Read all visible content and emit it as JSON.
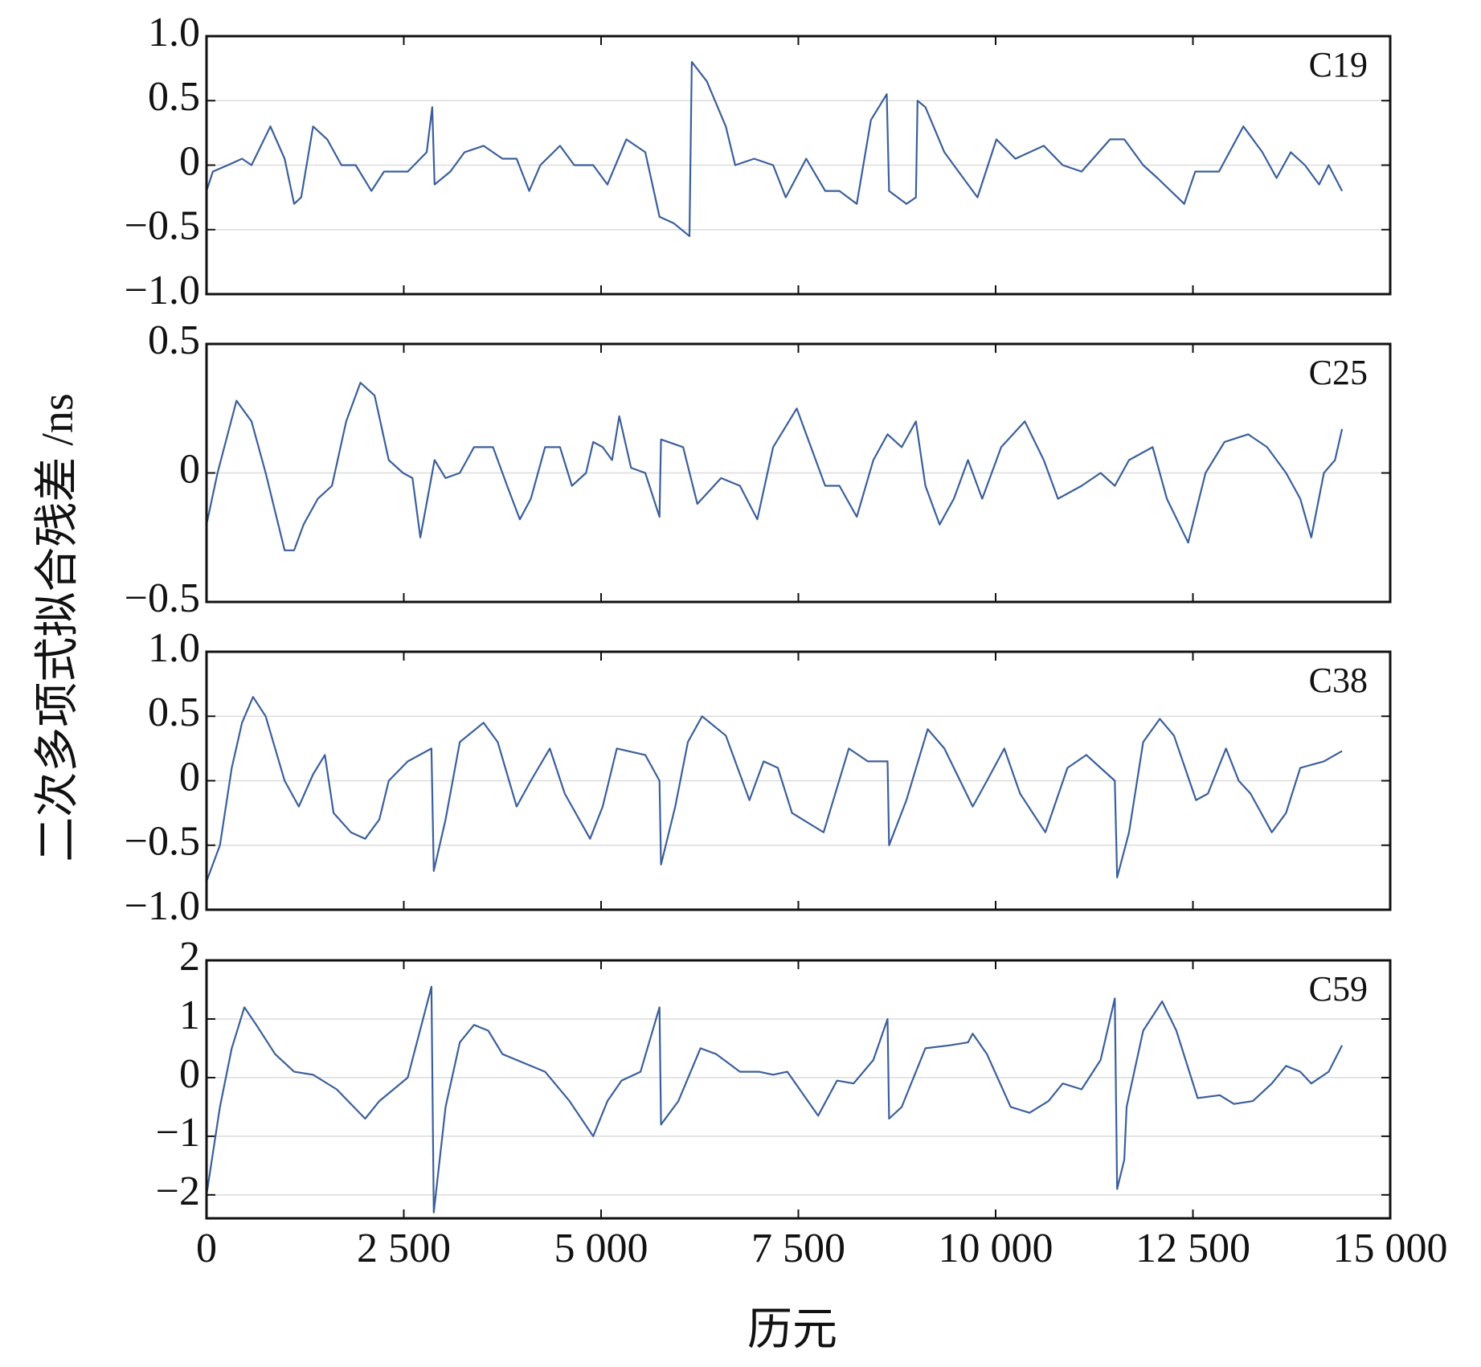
{
  "xlabel": "历元",
  "ylabel": "二次多项式拟合残差 /ns",
  "chart_data": [
    {
      "type": "line",
      "title": "C19",
      "color": "#3b5f9b",
      "grid": true,
      "xlim": [
        0,
        15000
      ],
      "xticks": [
        0,
        {
          "value": 2500,
          "label": "2 500"
        },
        {
          "value": 5000,
          "label": "5 000"
        },
        {
          "value": 7500,
          "label": "7 500"
        },
        {
          "value": 10000,
          "label": "10 000"
        },
        {
          "value": 12500,
          "label": "12 500"
        },
        {
          "value": 15000,
          "label": "15 000"
        }
      ],
      "ylim": [
        -1,
        1
      ],
      "yticks": [
        {
          "value": -1,
          "label": "−1.0"
        },
        {
          "value": -0.5,
          "label": "−0.5"
        },
        0,
        0.5,
        {
          "value": 1,
          "label": "1.0"
        }
      ],
      "x": [
        0,
        80,
        270,
        450,
        570,
        810,
        990,
        1110,
        1200,
        1350,
        1530,
        1710,
        1890,
        2090,
        2250,
        2550,
        2790,
        2860,
        2890,
        3090,
        3270,
        3510,
        3750,
        3930,
        4090,
        4230,
        4480,
        4660,
        4900,
        5080,
        5320,
        5560,
        5740,
        5920,
        6120,
        6150,
        6340,
        6580,
        6700,
        6940,
        7180,
        7340,
        7600,
        7840,
        8020,
        8240,
        8420,
        8620,
        8650,
        8870,
        8990,
        9010,
        9110,
        9350,
        9530,
        9770,
        10010,
        10250,
        10610,
        10850,
        11090,
        11450,
        11630,
        11870,
        12050,
        12390,
        12530,
        12830,
        13140,
        13380,
        13560,
        13740,
        13920,
        14100,
        14220,
        14390
      ],
      "values": [
        -0.2,
        -0.05,
        0,
        0.05,
        0,
        0.3,
        0.05,
        -0.3,
        -0.25,
        0.3,
        0.2,
        0,
        0,
        -0.2,
        -0.05,
        -0.05,
        0.1,
        0.45,
        -0.15,
        -0.05,
        0.1,
        0.15,
        0.05,
        0.05,
        -0.2,
        0,
        0.15,
        0,
        0,
        -0.15,
        0.2,
        0.1,
        -0.4,
        -0.45,
        -0.55,
        0.8,
        0.65,
        0.3,
        0,
        0.05,
        0,
        -0.25,
        0.05,
        -0.2,
        -0.2,
        -0.3,
        0.35,
        0.55,
        -0.2,
        -0.3,
        -0.25,
        0.5,
        0.45,
        0.1,
        -0.05,
        -0.25,
        0.2,
        0.05,
        0.15,
        0,
        -0.05,
        0.2,
        0.2,
        0,
        -0.1,
        -0.3,
        -0.05,
        -0.05,
        0.3,
        0.1,
        -0.1,
        0.1,
        0,
        -0.15,
        0,
        -0.2
      ]
    },
    {
      "type": "line",
      "title": "C25",
      "color": "#3b5f9b",
      "grid": true,
      "xlim": [
        0,
        15000
      ],
      "xticks": [
        0,
        {
          "value": 2500,
          "label": "2 500"
        },
        {
          "value": 5000,
          "label": "5 000"
        },
        {
          "value": 7500,
          "label": "7 500"
        },
        {
          "value": 10000,
          "label": "10 000"
        },
        {
          "value": 12500,
          "label": "12 500"
        },
        {
          "value": 15000,
          "label": "15 000"
        }
      ],
      "ylim": [
        -0.5,
        0.5
      ],
      "yticks": [
        {
          "value": -0.5,
          "label": "−0.5"
        },
        0,
        0.5
      ],
      "x": [
        0,
        140,
        380,
        570,
        750,
        990,
        1110,
        1230,
        1410,
        1590,
        1770,
        1950,
        2130,
        2310,
        2490,
        2610,
        2710,
        2890,
        3030,
        3210,
        3390,
        3630,
        3810,
        3970,
        4110,
        4290,
        4480,
        4630,
        4810,
        4900,
        5020,
        5140,
        5230,
        5380,
        5560,
        5740,
        5760,
        6040,
        6220,
        6520,
        6760,
        6980,
        7180,
        7480,
        7660,
        7840,
        8020,
        8240,
        8450,
        8630,
        8810,
        8990,
        9110,
        9290,
        9470,
        9650,
        9830,
        10070,
        10370,
        10610,
        10790,
        11090,
        11330,
        11510,
        11690,
        11990,
        12170,
        12440,
        12660,
        12900,
        13200,
        13440,
        13680,
        13860,
        14000,
        14160,
        14300,
        14390
      ],
      "values": [
        -0.2,
        0,
        0.28,
        0.2,
        0,
        -0.3,
        -0.3,
        -0.2,
        -0.1,
        -0.05,
        0.2,
        0.35,
        0.3,
        0.05,
        0,
        -0.02,
        -0.25,
        0.05,
        -0.02,
        0,
        0.1,
        0.1,
        -0.05,
        -0.18,
        -0.1,
        0.1,
        0.1,
        -0.05,
        0,
        0.12,
        0.1,
        0.05,
        0.22,
        0.02,
        0,
        -0.17,
        0.13,
        0.1,
        -0.12,
        -0.02,
        -0.05,
        -0.18,
        0.1,
        0.25,
        0.1,
        -0.05,
        -0.05,
        -0.17,
        0.05,
        0.15,
        0.1,
        0.2,
        -0.05,
        -0.2,
        -0.1,
        0.05,
        -0.1,
        0.1,
        0.2,
        0.05,
        -0.1,
        -0.05,
        0,
        -0.05,
        0.05,
        0.1,
        -0.1,
        -0.27,
        0,
        0.12,
        0.15,
        0.1,
        0,
        -0.1,
        -0.25,
        0,
        0.05,
        0.17
      ]
    },
    {
      "type": "line",
      "title": "C38",
      "color": "#3b5f9b",
      "grid": true,
      "xlim": [
        0,
        15000
      ],
      "xticks": [
        0,
        {
          "value": 2500,
          "label": "2 500"
        },
        {
          "value": 5000,
          "label": "5 000"
        },
        {
          "value": 7500,
          "label": "7 500"
        },
        {
          "value": 10000,
          "label": "10 000"
        },
        {
          "value": 12500,
          "label": "12 500"
        },
        {
          "value": 15000,
          "label": "15 000"
        }
      ],
      "ylim": [
        -1,
        1
      ],
      "yticks": [
        {
          "value": -1,
          "label": "−1.0"
        },
        {
          "value": -0.5,
          "label": "−0.5"
        },
        0,
        0.5,
        {
          "value": 1,
          "label": "1.0"
        }
      ],
      "x": [
        0,
        170,
        320,
        450,
        590,
        750,
        990,
        1170,
        1350,
        1500,
        1610,
        1830,
        2010,
        2190,
        2310,
        2550,
        2850,
        2880,
        3030,
        3210,
        3510,
        3690,
        3930,
        4110,
        4350,
        4540,
        4860,
        5020,
        5200,
        5560,
        5740,
        5760,
        5940,
        6100,
        6280,
        6580,
        6880,
        7060,
        7240,
        7420,
        7820,
        8140,
        8380,
        8630,
        8650,
        8870,
        9140,
        9350,
        9710,
        9890,
        10110,
        10310,
        10630,
        10910,
        11150,
        11330,
        11510,
        11540,
        11690,
        11870,
        12080,
        12260,
        12540,
        12690,
        12920,
        13080,
        13230,
        13500,
        13680,
        13860,
        14160,
        14390
      ],
      "values": [
        -0.78,
        -0.5,
        0.1,
        0.45,
        0.65,
        0.5,
        0,
        -0.2,
        0.05,
        0.2,
        -0.25,
        -0.4,
        -0.45,
        -0.3,
        0,
        0.15,
        0.25,
        -0.7,
        -0.3,
        0.3,
        0.45,
        0.3,
        -0.2,
        0,
        0.25,
        -0.1,
        -0.45,
        -0.2,
        0.25,
        0.2,
        0,
        -0.65,
        -0.2,
        0.3,
        0.5,
        0.35,
        -0.15,
        0.15,
        0.1,
        -0.25,
        -0.4,
        0.25,
        0.15,
        0.15,
        -0.5,
        -0.15,
        0.4,
        0.25,
        -0.2,
        0,
        0.25,
        -0.1,
        -0.4,
        0.1,
        0.2,
        0.1,
        0,
        -0.75,
        -0.4,
        0.3,
        0.48,
        0.35,
        -0.15,
        -0.1,
        0.25,
        0,
        -0.1,
        -0.4,
        -0.25,
        0.1,
        0.15,
        0.23
      ]
    },
    {
      "type": "line",
      "title": "C59",
      "color": "#3b5f9b",
      "grid": true,
      "xlim": [
        0,
        15000
      ],
      "xticks": [
        0,
        {
          "value": 2500,
          "label": "2 500"
        },
        {
          "value": 5000,
          "label": "5 000"
        },
        {
          "value": 7500,
          "label": "7 500"
        },
        {
          "value": 10000,
          "label": "10 000"
        },
        {
          "value": 12500,
          "label": "12 500"
        },
        {
          "value": 15000,
          "label": "15 000"
        }
      ],
      "ylim": [
        -2.4,
        2
      ],
      "yticks": [
        {
          "value": -2,
          "label": "−2"
        },
        {
          "value": -1,
          "label": "−1"
        },
        0,
        1,
        2
      ],
      "x": [
        0,
        170,
        320,
        480,
        630,
        870,
        1110,
        1350,
        1650,
        2010,
        2190,
        2550,
        2850,
        2880,
        3030,
        3210,
        3390,
        3570,
        3750,
        4290,
        4600,
        4900,
        5080,
        5260,
        5500,
        5740,
        5760,
        5980,
        6260,
        6460,
        6760,
        7000,
        7180,
        7360,
        7750,
        7990,
        8200,
        8450,
        8630,
        8650,
        8810,
        9110,
        9410,
        9650,
        9710,
        9890,
        10190,
        10430,
        10670,
        10850,
        11090,
        11330,
        11510,
        11540,
        11630,
        11660,
        11870,
        12110,
        12290,
        12560,
        12840,
        13020,
        13260,
        13500,
        13680,
        13860,
        14000,
        14220,
        14390
      ],
      "values": [
        -2,
        -0.5,
        0.5,
        1.2,
        0.9,
        0.4,
        0.1,
        0.05,
        -0.2,
        -0.7,
        -0.4,
        0,
        1.55,
        -2.3,
        -0.5,
        0.6,
        0.9,
        0.8,
        0.4,
        0.1,
        -0.4,
        -1,
        -0.4,
        -0.05,
        0.1,
        1.2,
        -0.8,
        -0.4,
        0.5,
        0.4,
        0.1,
        0.1,
        0.05,
        0.1,
        -0.65,
        -0.05,
        -0.1,
        0.3,
        1,
        -0.7,
        -0.5,
        0.5,
        0.55,
        0.6,
        0.75,
        0.4,
        -0.5,
        -0.6,
        -0.4,
        -0.1,
        -0.2,
        0.3,
        1.35,
        -1.9,
        -1.4,
        -0.5,
        0.8,
        1.3,
        0.8,
        -0.35,
        -0.3,
        -0.45,
        -0.4,
        -0.1,
        0.2,
        0.1,
        -0.1,
        0.1,
        0.55
      ]
    }
  ]
}
